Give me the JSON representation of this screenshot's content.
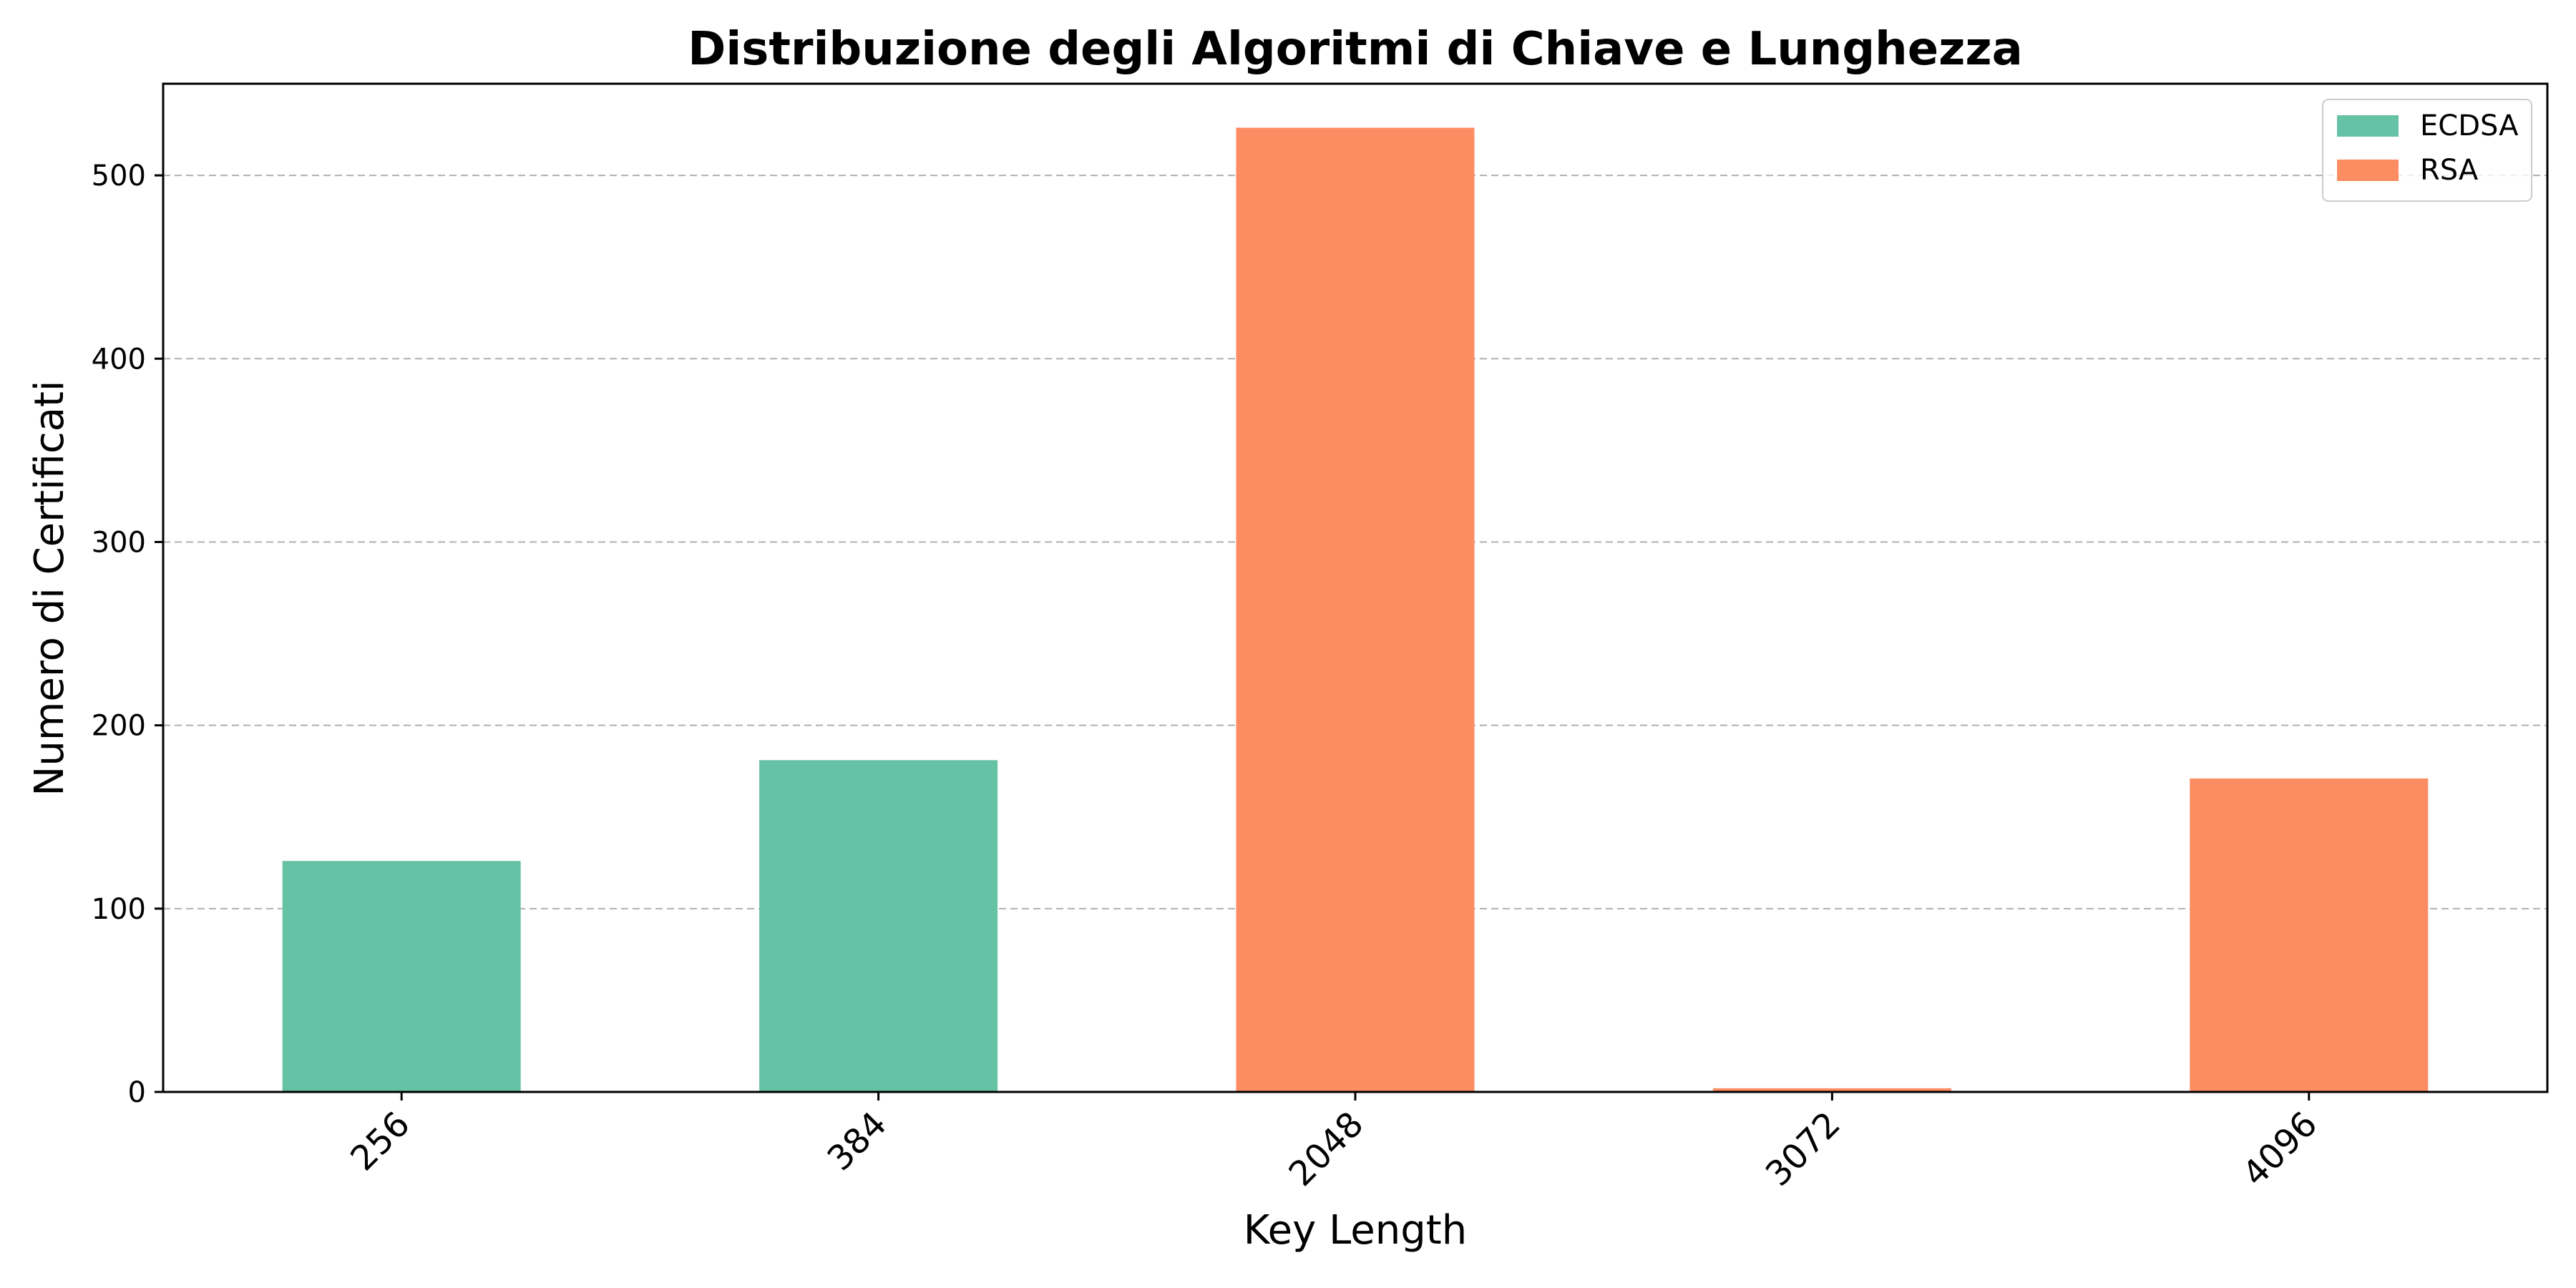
{
  "chart_data": {
    "type": "bar",
    "title": "Distribuzione degli Algoritmi di Chiave e Lunghezza",
    "xlabel": "Key Length",
    "ylabel": "Numero di Certificati",
    "categories": [
      "256",
      "384",
      "2048",
      "3072",
      "4096"
    ],
    "series": [
      {
        "name": "ECDSA",
        "color": "#66c2a5",
        "values": [
          126,
          181,
          0,
          0,
          0
        ]
      },
      {
        "name": "RSA",
        "color": "#fc8d62",
        "values": [
          0,
          0,
          526,
          2,
          171
        ]
      }
    ],
    "ylim": [
      0,
      550
    ],
    "yticks": [
      0,
      100,
      200,
      300,
      400,
      500
    ],
    "grid": {
      "axis": "y",
      "style": "dashed",
      "color": "#b0b0b0"
    },
    "legend": {
      "position": "top-right"
    }
  }
}
